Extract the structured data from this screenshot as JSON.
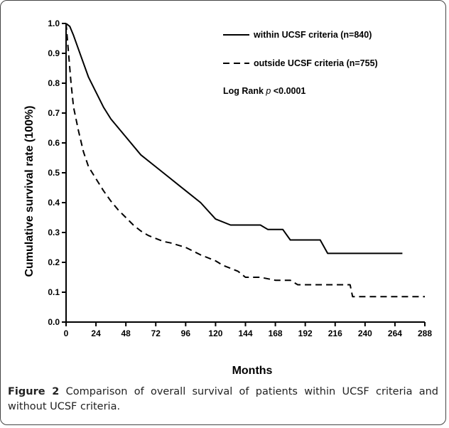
{
  "chart_data": {
    "type": "line",
    "xlabel": "Months",
    "ylabel": "Cumulative survival rate (100%)",
    "xlim": [
      0,
      288
    ],
    "ylim": [
      0,
      1.0
    ],
    "xticks": [
      0,
      24,
      48,
      72,
      96,
      120,
      144,
      168,
      192,
      216,
      240,
      264,
      288
    ],
    "yticks": [
      "0.0",
      "0.1",
      "0.2",
      "0.3",
      "0.4",
      "0.5",
      "0.6",
      "0.7",
      "0.8",
      "0.9",
      "1.0"
    ],
    "annotation": {
      "prefix": "Log Rank ",
      "italic": "p",
      "suffix": " <0.0001"
    },
    "series": [
      {
        "name": "within UCSF criteria (n=840)",
        "style": "solid",
        "color": "#000000",
        "points": [
          [
            0,
            1.0
          ],
          [
            3,
            0.99
          ],
          [
            6,
            0.96
          ],
          [
            12,
            0.89
          ],
          [
            18,
            0.82
          ],
          [
            24,
            0.77
          ],
          [
            30,
            0.72
          ],
          [
            36,
            0.68
          ],
          [
            48,
            0.62
          ],
          [
            60,
            0.56
          ],
          [
            72,
            0.52
          ],
          [
            84,
            0.48
          ],
          [
            96,
            0.44
          ],
          [
            108,
            0.4
          ],
          [
            120,
            0.345
          ],
          [
            132,
            0.325
          ],
          [
            144,
            0.325
          ],
          [
            156,
            0.325
          ],
          [
            162,
            0.31
          ],
          [
            174,
            0.31
          ],
          [
            180,
            0.275
          ],
          [
            192,
            0.275
          ],
          [
            204,
            0.275
          ],
          [
            210,
            0.23
          ],
          [
            222,
            0.23
          ],
          [
            240,
            0.23
          ],
          [
            264,
            0.23
          ],
          [
            270,
            0.23
          ]
        ]
      },
      {
        "name": "outside UCSF criteria (n=755)",
        "style": "dashed",
        "color": "#000000",
        "points": [
          [
            0,
            1.0
          ],
          [
            2,
            0.9
          ],
          [
            4,
            0.8
          ],
          [
            6,
            0.72
          ],
          [
            10,
            0.64
          ],
          [
            14,
            0.57
          ],
          [
            18,
            0.52
          ],
          [
            24,
            0.48
          ],
          [
            30,
            0.44
          ],
          [
            36,
            0.405
          ],
          [
            42,
            0.375
          ],
          [
            48,
            0.35
          ],
          [
            54,
            0.325
          ],
          [
            60,
            0.305
          ],
          [
            66,
            0.29
          ],
          [
            72,
            0.28
          ],
          [
            78,
            0.27
          ],
          [
            84,
            0.265
          ],
          [
            96,
            0.25
          ],
          [
            108,
            0.225
          ],
          [
            120,
            0.205
          ],
          [
            126,
            0.19
          ],
          [
            132,
            0.18
          ],
          [
            138,
            0.17
          ],
          [
            144,
            0.15
          ],
          [
            156,
            0.15
          ],
          [
            168,
            0.14
          ],
          [
            180,
            0.14
          ],
          [
            186,
            0.125
          ],
          [
            204,
            0.125
          ],
          [
            228,
            0.125
          ],
          [
            230,
            0.085
          ],
          [
            252,
            0.085
          ],
          [
            288,
            0.085
          ]
        ]
      }
    ]
  },
  "caption": {
    "figure_label": "Figure 2",
    "text": " Comparison of overall survival of patients within UCSF criteria and without UCSF criteria."
  }
}
